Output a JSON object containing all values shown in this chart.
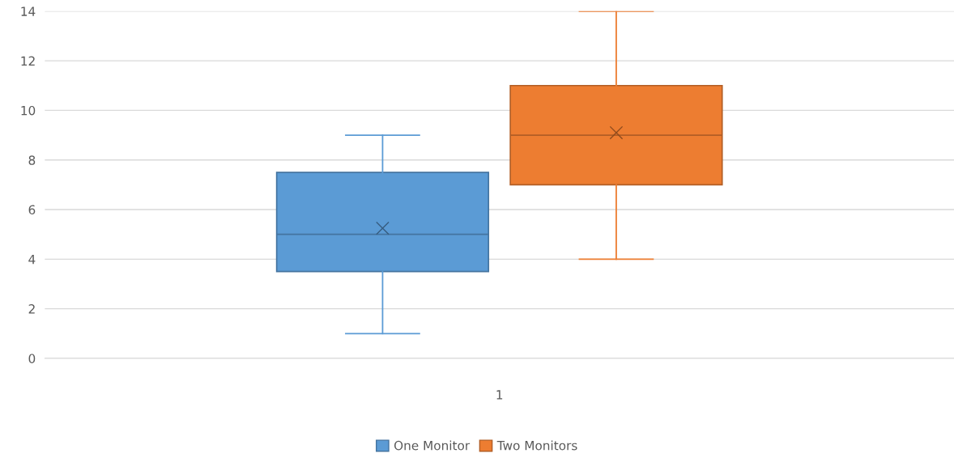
{
  "chart_data": {
    "type": "box",
    "categories": [
      "1"
    ],
    "series": [
      {
        "name": "One Monitor",
        "color": "#5b9bd5",
        "boxes": [
          {
            "low": 1,
            "q1": 3.5,
            "median": 5,
            "q3": 7.5,
            "high": 9,
            "mean": 5.25
          }
        ]
      },
      {
        "name": "Two Monitors",
        "color": "#ed7d31",
        "boxes": [
          {
            "low": 4,
            "q1": 7,
            "median": 9,
            "q3": 11,
            "high": 14,
            "mean": 9.1
          }
        ]
      }
    ],
    "ylim": [
      0,
      14
    ],
    "yticks": [
      0,
      2,
      4,
      6,
      8,
      10,
      12,
      14
    ],
    "grid": "y",
    "legend": "bottom",
    "marker": "cross"
  }
}
